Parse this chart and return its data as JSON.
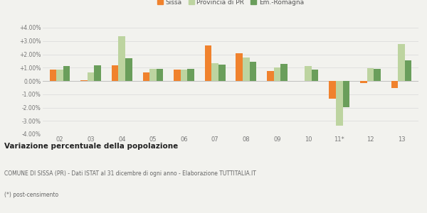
{
  "categories": [
    "02",
    "03",
    "04",
    "05",
    "06",
    "07",
    "08",
    "09",
    "10",
    "11*",
    "12",
    "13"
  ],
  "sissa": [
    0.85,
    0.07,
    1.15,
    0.65,
    0.85,
    2.65,
    2.1,
    0.75,
    0.02,
    -1.35,
    -0.18,
    -0.55
  ],
  "provincia": [
    0.85,
    0.65,
    3.35,
    0.9,
    0.85,
    1.35,
    1.75,
    1.0,
    1.1,
    -3.35,
    0.95,
    2.75
  ],
  "emromagna": [
    1.1,
    1.2,
    1.7,
    0.9,
    0.9,
    1.25,
    1.45,
    1.3,
    0.85,
    -1.95,
    0.9,
    1.55
  ],
  "color_sissa": "#f0822d",
  "color_provincia": "#bdd4a0",
  "color_emromagna": "#6a9e5b",
  "ylim": [
    -4.0,
    4.0
  ],
  "yticks": [
    -4.0,
    -3.0,
    -2.0,
    -1.0,
    0.0,
    1.0,
    2.0,
    3.0,
    4.0
  ],
  "title_bold": "Variazione percentuale della popolazione",
  "subtitle1": "COMUNE DI SISSA (PR) - Dati ISTAT al 31 dicembre di ogni anno - Elaborazione TUTTITALIA.IT",
  "subtitle2": "(*) post-censimento",
  "legend_labels": [
    "Sissa",
    "Provincia di PR",
    "Em.-Romagna"
  ],
  "background_color": "#f2f2ee"
}
